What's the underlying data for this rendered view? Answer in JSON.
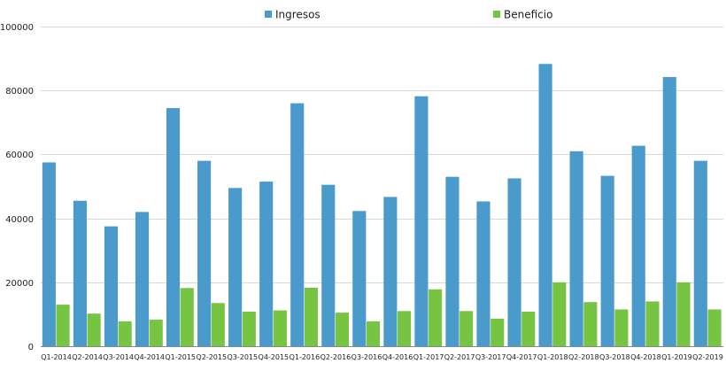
{
  "chart_data": {
    "type": "bar",
    "title": "",
    "xlabel": "",
    "ylabel": "",
    "ylim": [
      0,
      100000
    ],
    "yticks": [
      0,
      20000,
      40000,
      60000,
      80000,
      100000
    ],
    "grid": true,
    "legend_position": "top-center",
    "categories": [
      "Q1-2014",
      "Q2-2014",
      "Q3-2014",
      "Q4-2014",
      "Q1-2015",
      "Q2-2015",
      "Q3-2015",
      "Q4-2015",
      "Q1-2016",
      "Q2-2016",
      "Q3-2016",
      "Q4-2016",
      "Q1-2017",
      "Q2-2017",
      "Q3-2017",
      "Q4-2017",
      "Q1-2018",
      "Q2-2018",
      "Q3-2018",
      "Q4-2018",
      "Q1-2019",
      "Q2-2019"
    ],
    "series": [
      {
        "name": "Ingresos",
        "color": "#4a9acb",
        "values": [
          57500,
          45500,
          37500,
          42000,
          74500,
          58000,
          49500,
          51500,
          76000,
          50500,
          42300,
          46700,
          78200,
          53000,
          45300,
          52500,
          88300,
          61000,
          53300,
          62700,
          84200,
          58000
        ]
      },
      {
        "name": "Beneficio",
        "color": "#76c442",
        "values": [
          13000,
          10200,
          7800,
          8300,
          18200,
          13500,
          10800,
          11200,
          18300,
          10500,
          7800,
          11000,
          17800,
          11000,
          8600,
          10800,
          20000,
          13800,
          11500,
          14000,
          20000,
          11500
        ]
      }
    ]
  }
}
